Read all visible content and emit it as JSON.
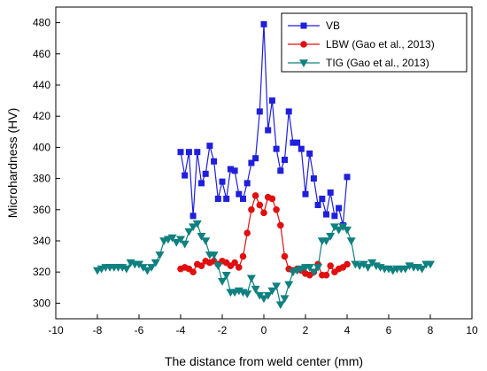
{
  "chart_data": {
    "type": "scatter",
    "xlabel": "The distance from weld center (mm)",
    "ylabel": "Microhardness (HV)",
    "xlim": [
      -10,
      10
    ],
    "ylim": [
      290,
      490
    ],
    "xticks": [
      "-10",
      "-8",
      "-6",
      "-4",
      "-2",
      "0",
      "2",
      "4",
      "6",
      "8",
      "10"
    ],
    "yticks": [
      "300",
      "320",
      "340",
      "360",
      "380",
      "400",
      "420",
      "440",
      "460",
      "480"
    ],
    "legend_position": "top-right",
    "series": [
      {
        "name": "VB",
        "color": "#1f1fdc",
        "marker": "square",
        "x": [
          -4.0,
          -3.8,
          -3.6,
          -3.4,
          -3.2,
          -3.0,
          -2.8,
          -2.6,
          -2.4,
          -2.2,
          -2.0,
          -1.8,
          -1.6,
          -1.4,
          -1.2,
          -1.0,
          -0.8,
          -0.6,
          -0.4,
          -0.2,
          0.0,
          0.2,
          0.4,
          0.6,
          0.8,
          1.0,
          1.2,
          1.4,
          1.6,
          1.8,
          2.0,
          2.2,
          2.4,
          2.6,
          2.8,
          3.0,
          3.2,
          3.4,
          3.6,
          3.8,
          4.0
        ],
        "y": [
          397,
          382,
          397,
          356,
          397,
          377,
          383,
          401,
          391,
          367,
          378,
          367,
          386,
          385,
          370,
          367,
          377,
          390,
          393,
          423,
          479,
          411,
          430,
          399,
          385,
          392,
          423,
          403,
          403,
          399,
          370,
          396,
          380,
          363,
          367,
          357,
          371,
          356,
          361,
          350,
          381
        ]
      },
      {
        "name": "LBW (Gao et al., 2013)",
        "color": "#e01010",
        "marker": "circle",
        "x": [
          -4.0,
          -3.8,
          -3.6,
          -3.4,
          -3.2,
          -3.0,
          -2.8,
          -2.6,
          -2.4,
          -2.2,
          -2.0,
          -1.8,
          -1.6,
          -1.4,
          -1.2,
          -1.0,
          -0.8,
          -0.6,
          -0.4,
          -0.2,
          0.0,
          0.2,
          0.4,
          0.6,
          0.8,
          1.0,
          1.2,
          1.4,
          1.6,
          1.8,
          2.0,
          2.2,
          2.4,
          2.6,
          2.8,
          3.0,
          3.2,
          3.4,
          3.6,
          3.8,
          4.0
        ],
        "y": [
          322,
          323,
          322,
          320,
          325,
          324,
          327,
          326,
          327,
          325,
          327,
          326,
          324,
          326,
          323,
          330,
          345,
          360,
          369,
          363,
          358,
          368,
          367,
          360,
          350,
          330,
          322,
          321,
          322,
          321,
          319,
          318,
          320,
          325,
          318,
          318,
          324,
          320,
          322,
          323,
          325
        ]
      },
      {
        "name": "TIG (Gao et al., 2013)",
        "color": "#108080",
        "marker": "triangle-down",
        "x": [
          -8.0,
          -7.8,
          -7.6,
          -7.4,
          -7.2,
          -7.0,
          -6.8,
          -6.6,
          -6.4,
          -6.2,
          -6.0,
          -5.8,
          -5.6,
          -5.4,
          -5.2,
          -5.0,
          -4.8,
          -4.6,
          -4.4,
          -4.2,
          -4.0,
          -3.8,
          -3.6,
          -3.4,
          -3.2,
          -3.0,
          -2.8,
          -2.6,
          -2.4,
          -2.2,
          -2.0,
          -1.8,
          -1.6,
          -1.4,
          -1.2,
          -1.0,
          -0.8,
          -0.6,
          -0.4,
          -0.2,
          0.0,
          0.2,
          0.4,
          0.6,
          0.8,
          1.0,
          1.2,
          1.4,
          1.6,
          1.8,
          2.0,
          2.2,
          2.4,
          2.6,
          2.8,
          3.0,
          3.2,
          3.4,
          3.6,
          3.8,
          4.0,
          4.2,
          4.4,
          4.6,
          4.8,
          5.0,
          5.2,
          5.4,
          5.6,
          5.8,
          6.0,
          6.2,
          6.4,
          6.6,
          6.8,
          7.0,
          7.2,
          7.4,
          7.6,
          7.8,
          8.0
        ],
        "y": [
          321,
          322,
          323,
          323,
          323,
          323,
          323,
          322,
          326,
          325,
          325,
          323,
          321,
          323,
          326,
          331,
          340,
          341,
          342,
          339,
          341,
          338,
          346,
          349,
          351,
          343,
          340,
          331,
          331,
          324,
          314,
          318,
          307,
          307,
          308,
          307,
          306,
          316,
          309,
          305,
          303,
          305,
          308,
          311,
          299,
          303,
          312,
          320,
          321,
          322,
          323,
          323,
          320,
          323,
          340,
          340,
          343,
          349,
          347,
          349,
          347,
          340,
          325,
          324,
          325,
          323,
          326,
          324,
          323,
          322,
          322,
          321,
          322,
          322,
          322,
          324,
          323,
          323,
          322,
          325,
          325
        ]
      }
    ]
  }
}
